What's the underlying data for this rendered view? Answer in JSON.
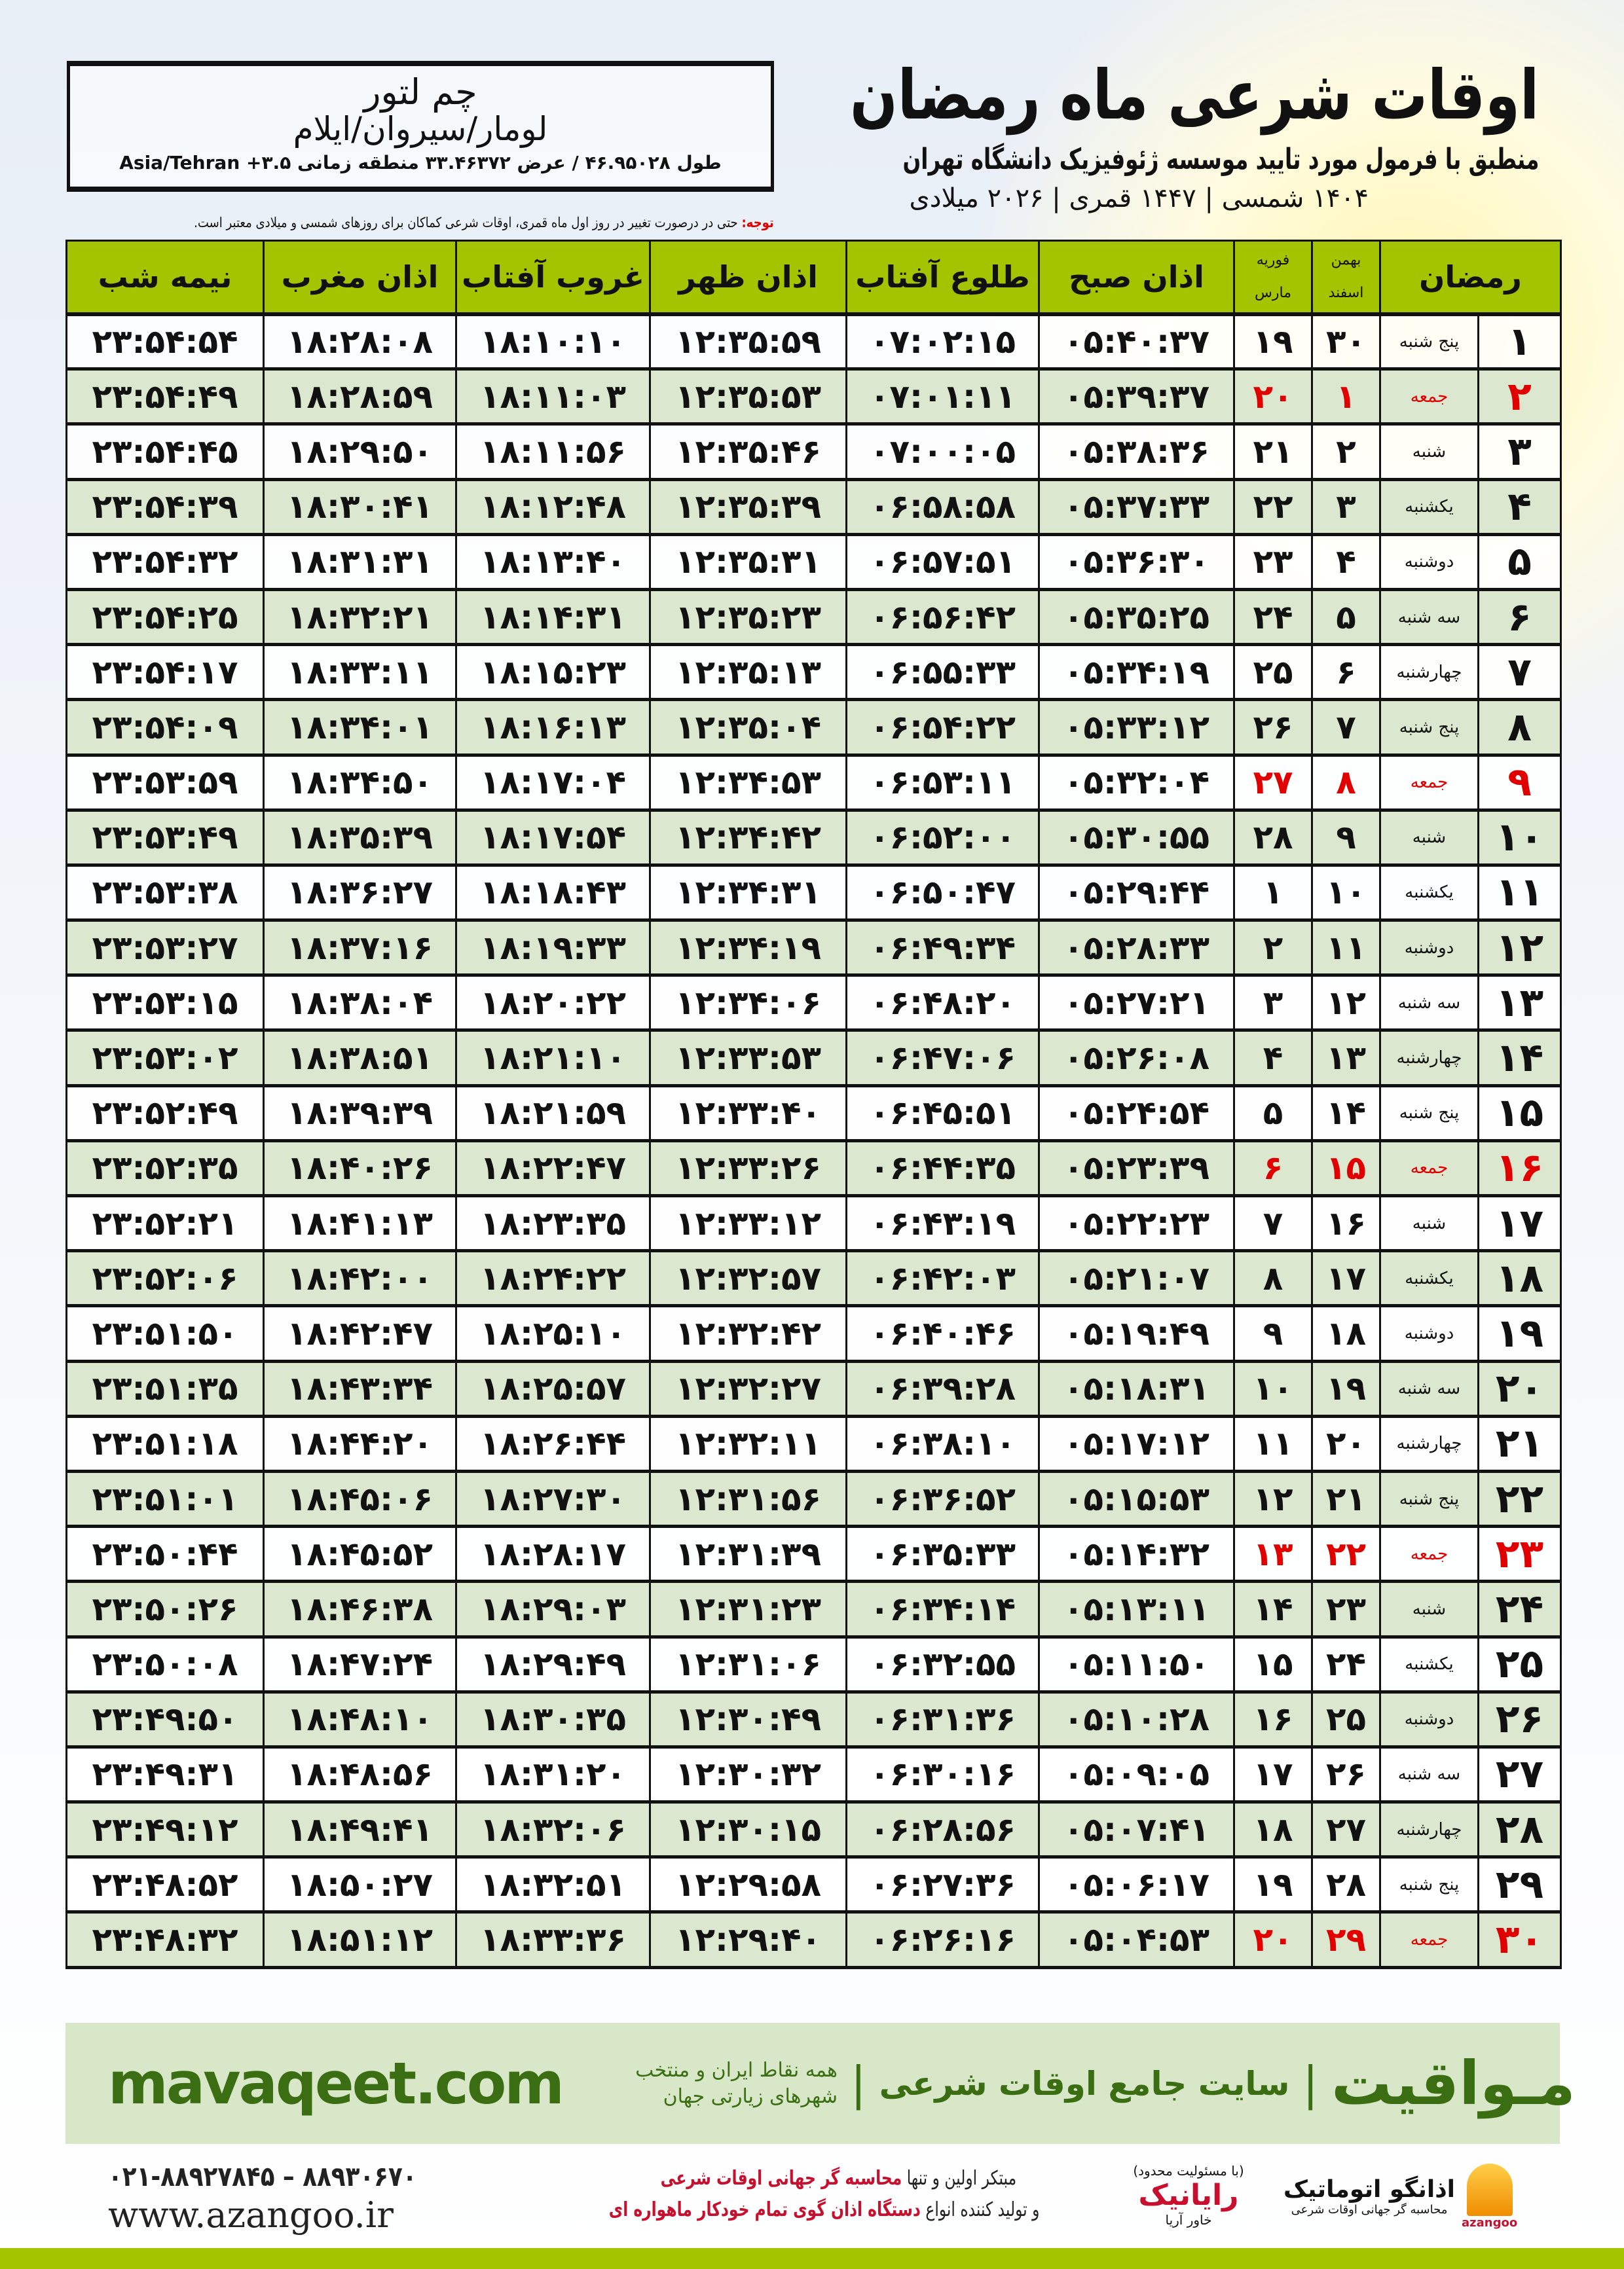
{
  "header": {
    "title": "اوقات شرعی ماه رمضان",
    "subtitle": "منطبق با فرمول مورد تایید موسسه ژئوفیزیک دانشگاه تهران",
    "dateline": "۱۴۰۴ شمسی | ۱۴۴۷ قمری | ۲۰۲۶ میلادی"
  },
  "location": {
    "city": "چم لتور",
    "region": "لومار/سیروان/ایلام",
    "coords": "طول ۴۶.۹۵۰۲۸ / عرض ۳۳.۴۶۳۷۲ منطقه زمانی ۳.۵+ Asia/Tehran"
  },
  "note": {
    "label": "توجه:",
    "text": " حتی در درصورت تغییر در روز اول ماه قمری، اوقات شرعی کماکان برای روزهای شمسی و میلادی معتبر است."
  },
  "table": {
    "headers": {
      "ramadan": "رمضان",
      "persian_month_1": "بهمن",
      "persian_month_2": "اسفند",
      "greg_month_1": "فوریه",
      "greg_month_2": "مارس",
      "fajr": "اذان صبح",
      "sunrise": "طلوع آفتاب",
      "dhuhr": "اذان ظهر",
      "sunset": "غروب آفتاب",
      "maghrib": "اذان مغرب",
      "midnight": "نیمه شب"
    },
    "columns": [
      "ramadan",
      "weekday",
      "persian_day",
      "gregorian_day",
      "fajr",
      "sunrise",
      "dhuhr",
      "sunset",
      "maghrib",
      "midnight"
    ],
    "friday_color": "#e00000",
    "rows": [
      [
        "۱",
        "پنج شنبه",
        "۳۰",
        "۱۹",
        "۰۵:۴۰:۳۷",
        "۰۷:۰۲:۱۵",
        "۱۲:۳۵:۵۹",
        "۱۸:۱۰:۱۰",
        "۱۸:۲۸:۰۸",
        "۲۳:۵۴:۵۴"
      ],
      [
        "۲",
        "جمعه",
        "۱",
        "۲۰",
        "۰۵:۳۹:۳۷",
        "۰۷:۰۱:۱۱",
        "۱۲:۳۵:۵۳",
        "۱۸:۱۱:۰۳",
        "۱۸:۲۸:۵۹",
        "۲۳:۵۴:۴۹"
      ],
      [
        "۳",
        "شنبه",
        "۲",
        "۲۱",
        "۰۵:۳۸:۳۶",
        "۰۷:۰۰:۰۵",
        "۱۲:۳۵:۴۶",
        "۱۸:۱۱:۵۶",
        "۱۸:۲۹:۵۰",
        "۲۳:۵۴:۴۵"
      ],
      [
        "۴",
        "یکشنبه",
        "۳",
        "۲۲",
        "۰۵:۳۷:۳۳",
        "۰۶:۵۸:۵۸",
        "۱۲:۳۵:۳۹",
        "۱۸:۱۲:۴۸",
        "۱۸:۳۰:۴۱",
        "۲۳:۵۴:۳۹"
      ],
      [
        "۵",
        "دوشنبه",
        "۴",
        "۲۳",
        "۰۵:۳۶:۳۰",
        "۰۶:۵۷:۵۱",
        "۱۲:۳۵:۳۱",
        "۱۸:۱۳:۴۰",
        "۱۸:۳۱:۳۱",
        "۲۳:۵۴:۳۲"
      ],
      [
        "۶",
        "سه شنبه",
        "۵",
        "۲۴",
        "۰۵:۳۵:۲۵",
        "۰۶:۵۶:۴۲",
        "۱۲:۳۵:۲۳",
        "۱۸:۱۴:۳۱",
        "۱۸:۳۲:۲۱",
        "۲۳:۵۴:۲۵"
      ],
      [
        "۷",
        "چهارشنبه",
        "۶",
        "۲۵",
        "۰۵:۳۴:۱۹",
        "۰۶:۵۵:۳۳",
        "۱۲:۳۵:۱۳",
        "۱۸:۱۵:۲۳",
        "۱۸:۳۳:۱۱",
        "۲۳:۵۴:۱۷"
      ],
      [
        "۸",
        "پنج شنبه",
        "۷",
        "۲۶",
        "۰۵:۳۳:۱۲",
        "۰۶:۵۴:۲۲",
        "۱۲:۳۵:۰۴",
        "۱۸:۱۶:۱۳",
        "۱۸:۳۴:۰۱",
        "۲۳:۵۴:۰۹"
      ],
      [
        "۹",
        "جمعه",
        "۸",
        "۲۷",
        "۰۵:۳۲:۰۴",
        "۰۶:۵۳:۱۱",
        "۱۲:۳۴:۵۳",
        "۱۸:۱۷:۰۴",
        "۱۸:۳۴:۵۰",
        "۲۳:۵۳:۵۹"
      ],
      [
        "۱۰",
        "شنبه",
        "۹",
        "۲۸",
        "۰۵:۳۰:۵۵",
        "۰۶:۵۲:۰۰",
        "۱۲:۳۴:۴۲",
        "۱۸:۱۷:۵۴",
        "۱۸:۳۵:۳۹",
        "۲۳:۵۳:۴۹"
      ],
      [
        "۱۱",
        "یکشنبه",
        "۱۰",
        "۱",
        "۰۵:۲۹:۴۴",
        "۰۶:۵۰:۴۷",
        "۱۲:۳۴:۳۱",
        "۱۸:۱۸:۴۳",
        "۱۸:۳۶:۲۷",
        "۲۳:۵۳:۳۸"
      ],
      [
        "۱۲",
        "دوشنبه",
        "۱۱",
        "۲",
        "۰۵:۲۸:۳۳",
        "۰۶:۴۹:۳۴",
        "۱۲:۳۴:۱۹",
        "۱۸:۱۹:۳۳",
        "۱۸:۳۷:۱۶",
        "۲۳:۵۳:۲۷"
      ],
      [
        "۱۳",
        "سه شنبه",
        "۱۲",
        "۳",
        "۰۵:۲۷:۲۱",
        "۰۶:۴۸:۲۰",
        "۱۲:۳۴:۰۶",
        "۱۸:۲۰:۲۲",
        "۱۸:۳۸:۰۴",
        "۲۳:۵۳:۱۵"
      ],
      [
        "۱۴",
        "چهارشنبه",
        "۱۳",
        "۴",
        "۰۵:۲۶:۰۸",
        "۰۶:۴۷:۰۶",
        "۱۲:۳۳:۵۳",
        "۱۸:۲۱:۱۰",
        "۱۸:۳۸:۵۱",
        "۲۳:۵۳:۰۲"
      ],
      [
        "۱۵",
        "پنج شنبه",
        "۱۴",
        "۵",
        "۰۵:۲۴:۵۴",
        "۰۶:۴۵:۵۱",
        "۱۲:۳۳:۴۰",
        "۱۸:۲۱:۵۹",
        "۱۸:۳۹:۳۹",
        "۲۳:۵۲:۴۹"
      ],
      [
        "۱۶",
        "جمعه",
        "۱۵",
        "۶",
        "۰۵:۲۳:۳۹",
        "۰۶:۴۴:۳۵",
        "۱۲:۳۳:۲۶",
        "۱۸:۲۲:۴۷",
        "۱۸:۴۰:۲۶",
        "۲۳:۵۲:۳۵"
      ],
      [
        "۱۷",
        "شنبه",
        "۱۶",
        "۷",
        "۰۵:۲۲:۲۳",
        "۰۶:۴۳:۱۹",
        "۱۲:۳۳:۱۲",
        "۱۸:۲۳:۳۵",
        "۱۸:۴۱:۱۳",
        "۲۳:۵۲:۲۱"
      ],
      [
        "۱۸",
        "یکشنبه",
        "۱۷",
        "۸",
        "۰۵:۲۱:۰۷",
        "۰۶:۴۲:۰۳",
        "۱۲:۳۲:۵۷",
        "۱۸:۲۴:۲۲",
        "۱۸:۴۲:۰۰",
        "۲۳:۵۲:۰۶"
      ],
      [
        "۱۹",
        "دوشنبه",
        "۱۸",
        "۹",
        "۰۵:۱۹:۴۹",
        "۰۶:۴۰:۴۶",
        "۱۲:۳۲:۴۲",
        "۱۸:۲۵:۱۰",
        "۱۸:۴۲:۴۷",
        "۲۳:۵۱:۵۰"
      ],
      [
        "۲۰",
        "سه شنبه",
        "۱۹",
        "۱۰",
        "۰۵:۱۸:۳۱",
        "۰۶:۳۹:۲۸",
        "۱۲:۳۲:۲۷",
        "۱۸:۲۵:۵۷",
        "۱۸:۴۳:۳۴",
        "۲۳:۵۱:۳۵"
      ],
      [
        "۲۱",
        "چهارشنبه",
        "۲۰",
        "۱۱",
        "۰۵:۱۷:۱۲",
        "۰۶:۳۸:۱۰",
        "۱۲:۳۲:۱۱",
        "۱۸:۲۶:۴۴",
        "۱۸:۴۴:۲۰",
        "۲۳:۵۱:۱۸"
      ],
      [
        "۲۲",
        "پنج شنبه",
        "۲۱",
        "۱۲",
        "۰۵:۱۵:۵۳",
        "۰۶:۳۶:۵۲",
        "۱۲:۳۱:۵۶",
        "۱۸:۲۷:۳۰",
        "۱۸:۴۵:۰۶",
        "۲۳:۵۱:۰۱"
      ],
      [
        "۲۳",
        "جمعه",
        "۲۲",
        "۱۳",
        "۰۵:۱۴:۳۲",
        "۰۶:۳۵:۳۳",
        "۱۲:۳۱:۳۹",
        "۱۸:۲۸:۱۷",
        "۱۸:۴۵:۵۲",
        "۲۳:۵۰:۴۴"
      ],
      [
        "۲۴",
        "شنبه",
        "۲۳",
        "۱۴",
        "۰۵:۱۳:۱۱",
        "۰۶:۳۴:۱۴",
        "۱۲:۳۱:۲۳",
        "۱۸:۲۹:۰۳",
        "۱۸:۴۶:۳۸",
        "۲۳:۵۰:۲۶"
      ],
      [
        "۲۵",
        "یکشنبه",
        "۲۴",
        "۱۵",
        "۰۵:۱۱:۵۰",
        "۰۶:۳۲:۵۵",
        "۱۲:۳۱:۰۶",
        "۱۸:۲۹:۴۹",
        "۱۸:۴۷:۲۴",
        "۲۳:۵۰:۰۸"
      ],
      [
        "۲۶",
        "دوشنبه",
        "۲۵",
        "۱۶",
        "۰۵:۱۰:۲۸",
        "۰۶:۳۱:۳۶",
        "۱۲:۳۰:۴۹",
        "۱۸:۳۰:۳۵",
        "۱۸:۴۸:۱۰",
        "۲۳:۴۹:۵۰"
      ],
      [
        "۲۷",
        "سه شنبه",
        "۲۶",
        "۱۷",
        "۰۵:۰۹:۰۵",
        "۰۶:۳۰:۱۶",
        "۱۲:۳۰:۳۲",
        "۱۸:۳۱:۲۰",
        "۱۸:۴۸:۵۶",
        "۲۳:۴۹:۳۱"
      ],
      [
        "۲۸",
        "چهارشنبه",
        "۲۷",
        "۱۸",
        "۰۵:۰۷:۴۱",
        "۰۶:۲۸:۵۶",
        "۱۲:۳۰:۱۵",
        "۱۸:۳۲:۰۶",
        "۱۸:۴۹:۴۱",
        "۲۳:۴۹:۱۲"
      ],
      [
        "۲۹",
        "پنج شنبه",
        "۲۸",
        "۱۹",
        "۰۵:۰۶:۱۷",
        "۰۶:۲۷:۳۶",
        "۱۲:۲۹:۵۸",
        "۱۸:۳۲:۵۱",
        "۱۸:۵۰:۲۷",
        "۲۳:۴۸:۵۲"
      ],
      [
        "۳۰",
        "جمعه",
        "۲۹",
        "۲۰",
        "۰۵:۰۴:۵۳",
        "۰۶:۲۶:۱۶",
        "۱۲:۲۹:۴۰",
        "۱۸:۳۳:۳۶",
        "۱۸:۵۱:۱۲",
        "۲۳:۴۸:۳۲"
      ]
    ]
  },
  "promo": {
    "brand": "مـواقیت",
    "separator": "|",
    "tagline": "سایت جامع اوقات شرعی",
    "tagline2": "همه نقاط ایران و منتخب شهرهای زیارتی جهان",
    "url": "mavaqeet.com",
    "color": "#3b6e12"
  },
  "footer": {
    "phone": "۰۲۱-۸۸۹۲۷۸۴۵ – ۸۸۹۳۰۶۷۰",
    "website": "www.azangoo.ir",
    "slogan_1a": "مبتکر اولین و تنها ",
    "slogan_1b": "محاسبه گر جهانی اوقات شرعی",
    "slogan_2a": "و تولید کننده انواع ",
    "slogan_2b": "دستگاه اذان گوی تمام خودکار ماهواره ای",
    "logo_rayanik": "رایانیک",
    "logo_rayanik_sub": "خاور آریا",
    "logo_rayanik_note": "(با مسئولیت محدود)",
    "logo_azangoo": "اذانگو اتوماتیک",
    "logo_azangoo_sub": "محاسبه گر جهانی اوقات شرعی",
    "logo_azangoo_en": "azangoo",
    "accent": "#c8102e",
    "bar_color": "#a4c400"
  }
}
